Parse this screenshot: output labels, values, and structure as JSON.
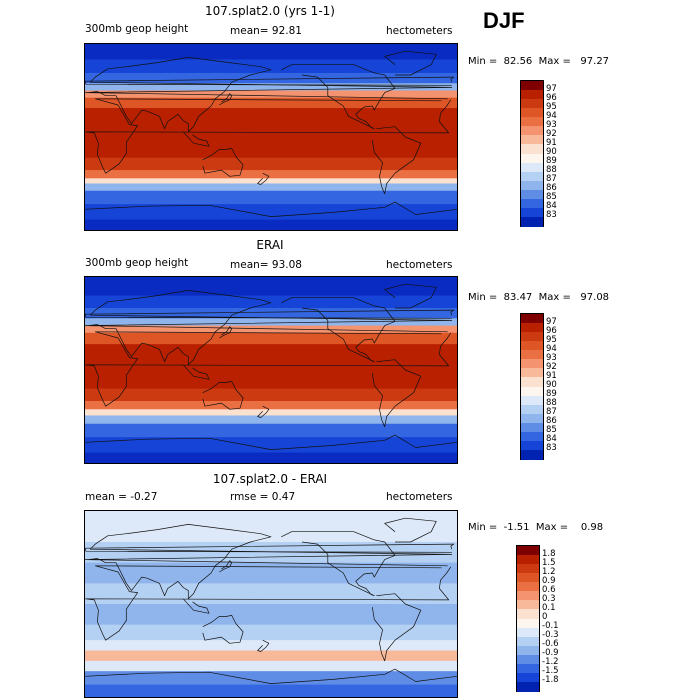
{
  "season": "DJF",
  "panels": [
    {
      "title": "107.splat2.0 (yrs 1-1)",
      "left_label": "300mb geop height",
      "mid_label": "mean=  92.81",
      "right_label": "hectometers",
      "min_max": "Min =  82.56  Max =   97.27",
      "colorbar": {
        "labels": [
          "97",
          "96",
          "95",
          "94",
          "93",
          "92",
          "91",
          "90",
          "89",
          "88",
          "87",
          "86",
          "85",
          "84",
          "83"
        ],
        "colors": [
          "#7f0000",
          "#b82000",
          "#cc3a12",
          "#de5526",
          "#ea6f42",
          "#f3936f",
          "#f8b89a",
          "#fbe1cf",
          "#fdf6ee",
          "#dde9f8",
          "#b4d0f2",
          "#8fb5ec",
          "#5f8de6",
          "#3366e0",
          "#1544d6",
          "#0022b0"
        ]
      },
      "map": {
        "bands": [
          {
            "lat": 90,
            "color": "#0a2bc2"
          },
          {
            "lat": 75,
            "color": "#1544d6"
          },
          {
            "lat": 62,
            "color": "#3366e0"
          },
          {
            "lat": 52,
            "color": "#8fb5ec"
          },
          {
            "lat": 45,
            "color": "#f3936f"
          },
          {
            "lat": 38,
            "color": "#de5526"
          },
          {
            "lat": 28,
            "color": "#b82000"
          },
          {
            "lat": -20,
            "color": "#cc3a12"
          },
          {
            "lat": -32,
            "color": "#ea6f42"
          },
          {
            "lat": -40,
            "color": "#fbe1cf"
          },
          {
            "lat": -45,
            "color": "#8fb5ec"
          },
          {
            "lat": -52,
            "color": "#3366e0"
          },
          {
            "lat": -65,
            "color": "#1544d6"
          },
          {
            "lat": -80,
            "color": "#0a2bc2"
          }
        ]
      }
    },
    {
      "title": "ERAI",
      "left_label": "300mb geop height",
      "mid_label": "mean=  93.08",
      "right_label": "hectometers",
      "min_max": "Min =  83.47  Max =   97.08",
      "colorbar": {
        "labels": [
          "97",
          "96",
          "95",
          "94",
          "93",
          "92",
          "91",
          "90",
          "89",
          "88",
          "87",
          "86",
          "85",
          "84",
          "83"
        ],
        "colors": [
          "#7f0000",
          "#b82000",
          "#cc3a12",
          "#de5526",
          "#ea6f42",
          "#f3936f",
          "#f8b89a",
          "#fbe1cf",
          "#fdf6ee",
          "#dde9f8",
          "#b4d0f2",
          "#8fb5ec",
          "#5f8de6",
          "#3366e0",
          "#1544d6",
          "#0022b0"
        ]
      },
      "map": {
        "bands": [
          {
            "lat": 90,
            "color": "#0a2bc2"
          },
          {
            "lat": 72,
            "color": "#1544d6"
          },
          {
            "lat": 60,
            "color": "#3366e0"
          },
          {
            "lat": 50,
            "color": "#8fb5ec"
          },
          {
            "lat": 43,
            "color": "#f3936f"
          },
          {
            "lat": 36,
            "color": "#de5526"
          },
          {
            "lat": 25,
            "color": "#b82000"
          },
          {
            "lat": -18,
            "color": "#cc3a12"
          },
          {
            "lat": -30,
            "color": "#ea6f42"
          },
          {
            "lat": -38,
            "color": "#fbe1cf"
          },
          {
            "lat": -44,
            "color": "#8fb5ec"
          },
          {
            "lat": -52,
            "color": "#3366e0"
          },
          {
            "lat": -65,
            "color": "#1544d6"
          },
          {
            "lat": -80,
            "color": "#0a2bc2"
          }
        ]
      }
    },
    {
      "title": "107.splat2.0 - ERAI",
      "left_label": "mean =  -0.27",
      "mid_label": "rmse =   0.47",
      "right_label": "hectometers",
      "min_max": "Min =  -1.51  Max =    0.98",
      "colorbar": {
        "labels": [
          "1.8",
          "1.5",
          "1.2",
          "0.9",
          "0.6",
          "0.3",
          "0.1",
          "0",
          "-0.1",
          "-0.3",
          "-0.6",
          "-0.9",
          "-1.2",
          "-1.5",
          "-1.8"
        ],
        "colors": [
          "#7f0000",
          "#b82000",
          "#cc3a12",
          "#de5526",
          "#ea6f42",
          "#f3936f",
          "#f8b89a",
          "#fbe1cf",
          "#fdf6ee",
          "#dde9f8",
          "#b4d0f2",
          "#8fb5ec",
          "#5f8de6",
          "#3366e0",
          "#1544d6",
          "#0022b0"
        ]
      },
      "map": {
        "bands": [
          {
            "lat": 90,
            "color": "#dde9f8"
          },
          {
            "lat": 60,
            "color": "#b4d0f2"
          },
          {
            "lat": 40,
            "color": "#8fb5ec"
          },
          {
            "lat": 20,
            "color": "#b4d0f2"
          },
          {
            "lat": 0,
            "color": "#8fb5ec"
          },
          {
            "lat": -20,
            "color": "#b4d0f2"
          },
          {
            "lat": -35,
            "color": "#dde9f8"
          },
          {
            "lat": -45,
            "color": "#f8b89a"
          },
          {
            "lat": -55,
            "color": "#dde9f8"
          },
          {
            "lat": -65,
            "color": "#5f8de6"
          },
          {
            "lat": -78,
            "color": "#3366e0"
          }
        ]
      }
    }
  ]
}
